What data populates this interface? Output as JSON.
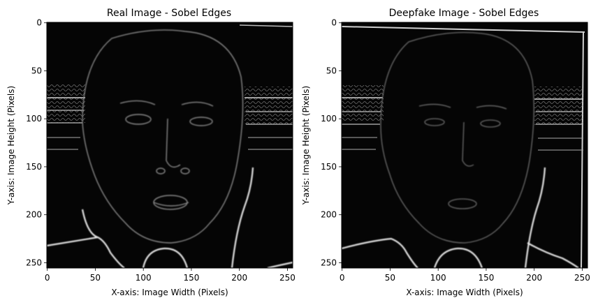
{
  "figure": {
    "panels": [
      {
        "id": "real",
        "title": "Real Image - Sobel Edges",
        "xlabel": "X-axis: Image Width (Pixels)",
        "ylabel": "Y-axis: Image Height (Pixels)",
        "xticks": [
          "0",
          "50",
          "100",
          "150",
          "200",
          "250"
        ],
        "yticks": [
          "0",
          "50",
          "100",
          "150",
          "200",
          "250"
        ]
      },
      {
        "id": "deepfake",
        "title": "Deepfake Image - Sobel Edges",
        "xlabel": "X-axis: Image Width (Pixels)",
        "ylabel": "Y-axis: Image Height (Pixels)",
        "xticks": [
          "0",
          "50",
          "100",
          "150",
          "200",
          "250"
        ],
        "yticks": [
          "0",
          "50",
          "100",
          "150",
          "200",
          "250"
        ]
      }
    ],
    "colors": {
      "background": "#ffffff",
      "image_bg": "#050505",
      "edge": "#d8d8d8"
    }
  }
}
